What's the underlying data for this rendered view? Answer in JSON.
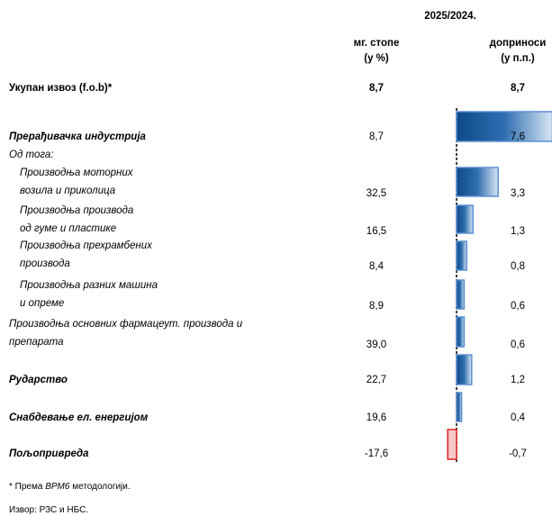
{
  "header": {
    "period": "2025/2024.",
    "col1": [
      "мг. стопе",
      "(у %)"
    ],
    "col2": [
      "доприноси",
      "(у п.п.)"
    ]
  },
  "table": {
    "rows": [
      {
        "label": [
          "Укупан извоз (f.o.b)*"
        ],
        "style": "bold",
        "rate": "8,7",
        "contribution": {
          "value": 8.7,
          "label": "8,7"
        },
        "bar": false
      },
      {
        "label": [
          "Прерађивачка индустрија"
        ],
        "style": "bold-italic",
        "rate": "8,7",
        "contribution": {
          "value": 7.6,
          "label": "7,6"
        },
        "bar": true
      },
      {
        "label": [
          "Од тога:"
        ],
        "style": "italic"
      },
      {
        "label": [
          "Производња моторних",
          "возила и приколица"
        ],
        "style": "italic",
        "indent": true,
        "rate": "32,5",
        "contribution": {
          "value": 3.3,
          "label": "3,3"
        },
        "bar": true
      },
      {
        "label": [
          "Производња производа",
          "од гуме и пластике"
        ],
        "style": "italic",
        "indent": true,
        "rate": "16,5",
        "contribution": {
          "value": 1.3,
          "label": "1,3"
        },
        "bar": true
      },
      {
        "label": [
          "Производња прехрамбених",
          "производа"
        ],
        "style": "italic",
        "indent": true,
        "rate": "8,4",
        "contribution": {
          "value": 0.8,
          "label": "0,8"
        },
        "bar": true
      },
      {
        "label": [
          "Производња разних машина",
          "и опреме"
        ],
        "style": "italic",
        "indent": true,
        "rate": "8,9",
        "contribution": {
          "value": 0.6,
          "label": "0,6"
        },
        "bar": true
      },
      {
        "label": [
          "Производња основних фармацеут. производа и",
          "препарата"
        ],
        "style": "italic",
        "rate": "39,0",
        "contribution": {
          "value": 0.6,
          "label": "0,6"
        },
        "bar": true
      },
      {
        "label": [
          "Рударство"
        ],
        "style": "bold-italic",
        "rate": "22,7",
        "contribution": {
          "value": 1.2,
          "label": "1,2"
        },
        "bar": true
      },
      {
        "label": [
          "Снабдевање ел. енергијом"
        ],
        "style": "bold-italic",
        "rate": "19,6",
        "contribution": {
          "value": 0.4,
          "label": "0,4"
        },
        "bar": true
      },
      {
        "label": [
          "Пољопривреда"
        ],
        "style": "bold-italic",
        "rate": "-17,6",
        "contribution": {
          "value": -0.7,
          "label": "-0,7"
        },
        "bar": true
      }
    ]
  },
  "footnote": [
    "* Према ",
    "BPM6",
    " методологији."
  ],
  "source": "Извор: РЗС и НБС."
}
